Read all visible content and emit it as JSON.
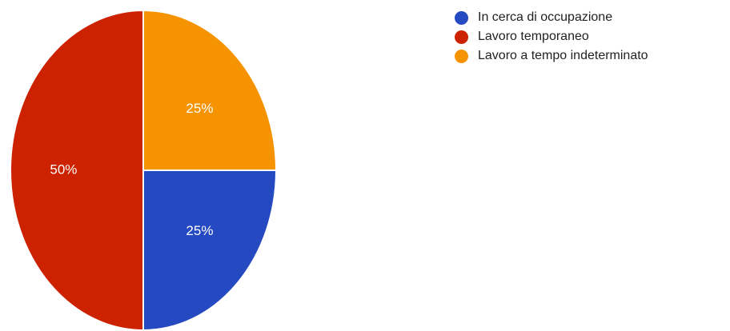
{
  "chart_data": {
    "type": "pie",
    "slices": [
      {
        "label": "In cerca di occupazione",
        "value": 25,
        "display": "25%",
        "color": "#2549c0"
      },
      {
        "label": "Lavoro temporaneo",
        "value": 50,
        "display": "50%",
        "color": "#cc2200"
      },
      {
        "label": "Lavoro a tempo indeterminato",
        "value": 25,
        "display": "25%",
        "color": "#f59300"
      }
    ],
    "legend_position": "top-right"
  }
}
